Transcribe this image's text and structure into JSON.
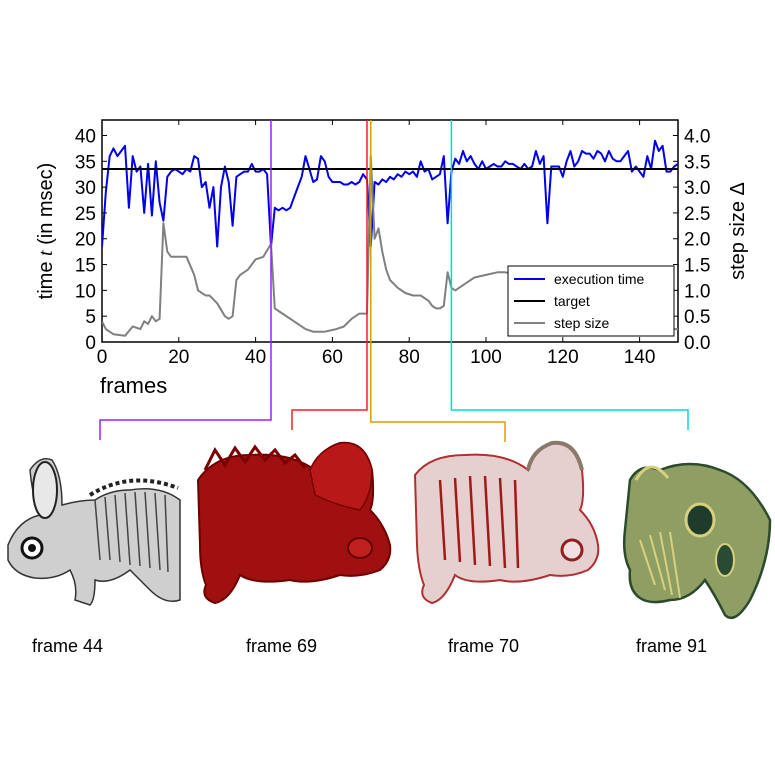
{
  "chart_data": {
    "type": "line",
    "xlabel": "frames",
    "ylabel_left": "time t (in msec)",
    "ylabel_right": "step size Δ",
    "xlim": [
      0,
      150
    ],
    "ylim_left": [
      0,
      43
    ],
    "ylim_right": [
      0,
      4.3
    ],
    "xticks": [
      0,
      20,
      40,
      60,
      80,
      100,
      120,
      140
    ],
    "yticks_left": [
      0,
      5,
      10,
      15,
      20,
      25,
      30,
      35,
      40
    ],
    "yticks_right": [
      "0.0",
      "0.5",
      "1.0",
      "1.5",
      "2.0",
      "2.5",
      "3.0",
      "3.5",
      "4.0"
    ],
    "legend_position": "lower-right",
    "series": [
      {
        "name": "execution time",
        "axis": "left",
        "color": "#0000ee",
        "points": [
          [
            0,
            18.5
          ],
          [
            1,
            29
          ],
          [
            2,
            36
          ],
          [
            3,
            37.5
          ],
          [
            4,
            36
          ],
          [
            5,
            37
          ],
          [
            6,
            38
          ],
          [
            7,
            26
          ],
          [
            8,
            36
          ],
          [
            9,
            33
          ],
          [
            10,
            34
          ],
          [
            11,
            25
          ],
          [
            12,
            34.5
          ],
          [
            13,
            24.5
          ],
          [
            14,
            35
          ],
          [
            15,
            27
          ],
          [
            16,
            23.5
          ],
          [
            17,
            32
          ],
          [
            18,
            33
          ],
          [
            19,
            33.5
          ],
          [
            20,
            33
          ],
          [
            21,
            32.5
          ],
          [
            22,
            33.5
          ],
          [
            23,
            33
          ],
          [
            24,
            36
          ],
          [
            25,
            35.5
          ],
          [
            26,
            30
          ],
          [
            27,
            31
          ],
          [
            28,
            26
          ],
          [
            29,
            30
          ],
          [
            30,
            18.5
          ],
          [
            31,
            30
          ],
          [
            32,
            34
          ],
          [
            33,
            31
          ],
          [
            34,
            22.5
          ],
          [
            35,
            32
          ],
          [
            36,
            32.5
          ],
          [
            37,
            33
          ],
          [
            38,
            33
          ],
          [
            39,
            34.5
          ],
          [
            40,
            33
          ],
          [
            41,
            33
          ],
          [
            42,
            33.5
          ],
          [
            43,
            32.5
          ],
          [
            44,
            18.5
          ],
          [
            45,
            26
          ],
          [
            46,
            25.5
          ],
          [
            47,
            26
          ],
          [
            48,
            25.5
          ],
          [
            49,
            26
          ],
          [
            50,
            28
          ],
          [
            51,
            30
          ],
          [
            52,
            32
          ],
          [
            53,
            36
          ],
          [
            54,
            33.5
          ],
          [
            55,
            31
          ],
          [
            56,
            31.5
          ],
          [
            57,
            36
          ],
          [
            58,
            35
          ],
          [
            59,
            32
          ],
          [
            60,
            31
          ],
          [
            61,
            31
          ],
          [
            62,
            31
          ],
          [
            63,
            30.5
          ],
          [
            64,
            30.5
          ],
          [
            65,
            31
          ],
          [
            66,
            30.5
          ],
          [
            67,
            31
          ],
          [
            68,
            32.5
          ],
          [
            69,
            31.5
          ],
          [
            70,
            18.5
          ],
          [
            71,
            31
          ],
          [
            72,
            30.5
          ],
          [
            73,
            31.5
          ],
          [
            74,
            31
          ],
          [
            75,
            32
          ],
          [
            76,
            31.5
          ],
          [
            77,
            32.5
          ],
          [
            78,
            32
          ],
          [
            79,
            33
          ],
          [
            80,
            32.5
          ],
          [
            81,
            33
          ],
          [
            82,
            32
          ],
          [
            83,
            35
          ],
          [
            84,
            33
          ],
          [
            85,
            33.5
          ],
          [
            86,
            31.5
          ],
          [
            87,
            32
          ],
          [
            88,
            32.5
          ],
          [
            89,
            36
          ],
          [
            90,
            23
          ],
          [
            91,
            33
          ],
          [
            92,
            35.5
          ],
          [
            93,
            34.5
          ],
          [
            94,
            37
          ],
          [
            95,
            35
          ],
          [
            96,
            36
          ],
          [
            97,
            34.5
          ],
          [
            98,
            33.5
          ],
          [
            99,
            35
          ],
          [
            100,
            33.5
          ],
          [
            101,
            34
          ],
          [
            102,
            34.5
          ],
          [
            103,
            34
          ],
          [
            104,
            34
          ],
          [
            105,
            35
          ],
          [
            106,
            34.5
          ],
          [
            107,
            34.5
          ],
          [
            108,
            34
          ],
          [
            109,
            33.5
          ],
          [
            110,
            34.5
          ],
          [
            111,
            33.5
          ],
          [
            112,
            34
          ],
          [
            113,
            37
          ],
          [
            114,
            34.5
          ],
          [
            115,
            36
          ],
          [
            116,
            23
          ],
          [
            117,
            34
          ],
          [
            118,
            34
          ],
          [
            119,
            34
          ],
          [
            120,
            32
          ],
          [
            121,
            35
          ],
          [
            122,
            37
          ],
          [
            123,
            34
          ],
          [
            124,
            35
          ],
          [
            125,
            37
          ],
          [
            126,
            36.5
          ],
          [
            127,
            36.5
          ],
          [
            128,
            35.5
          ],
          [
            129,
            37
          ],
          [
            130,
            36.5
          ],
          [
            131,
            35
          ],
          [
            132,
            37
          ],
          [
            133,
            35.5
          ],
          [
            134,
            35
          ],
          [
            135,
            35
          ],
          [
            136,
            36
          ],
          [
            137,
            37
          ],
          [
            138,
            33
          ],
          [
            139,
            34
          ],
          [
            140,
            33
          ],
          [
            141,
            32
          ],
          [
            142,
            36
          ],
          [
            143,
            33.5
          ],
          [
            144,
            39
          ],
          [
            145,
            37
          ],
          [
            146,
            38
          ],
          [
            147,
            33
          ],
          [
            148,
            33
          ],
          [
            149,
            34
          ],
          [
            150,
            34.5
          ]
        ]
      },
      {
        "name": "target",
        "axis": "left",
        "color": "#000000",
        "points": [
          [
            0,
            33.5
          ],
          [
            150,
            33.5
          ]
        ]
      },
      {
        "name": "step size",
        "axis": "right",
        "color": "#808080",
        "points": [
          [
            0,
            0.4
          ],
          [
            1,
            0.25
          ],
          [
            3,
            0.15
          ],
          [
            6,
            0.12
          ],
          [
            8,
            0.3
          ],
          [
            10,
            0.25
          ],
          [
            11,
            0.4
          ],
          [
            12,
            0.35
          ],
          [
            13,
            0.5
          ],
          [
            14,
            0.4
          ],
          [
            15,
            0.45
          ],
          [
            16,
            2.3
          ],
          [
            17,
            1.75
          ],
          [
            18,
            1.65
          ],
          [
            20,
            1.65
          ],
          [
            22,
            1.65
          ],
          [
            24,
            1.3
          ],
          [
            25,
            1.0
          ],
          [
            27,
            0.9
          ],
          [
            28,
            0.9
          ],
          [
            30,
            0.75
          ],
          [
            32,
            0.5
          ],
          [
            33,
            0.45
          ],
          [
            34,
            0.5
          ],
          [
            35,
            1.2
          ],
          [
            36,
            1.3
          ],
          [
            38,
            1.4
          ],
          [
            40,
            1.6
          ],
          [
            42,
            1.65
          ],
          [
            44,
            1.9
          ],
          [
            45,
            0.65
          ],
          [
            46,
            0.6
          ],
          [
            50,
            0.4
          ],
          [
            53,
            0.25
          ],
          [
            55,
            0.2
          ],
          [
            58,
            0.2
          ],
          [
            61,
            0.25
          ],
          [
            63,
            0.3
          ],
          [
            65,
            0.45
          ],
          [
            67,
            0.55
          ],
          [
            69,
            0.55
          ],
          [
            70,
            3.6
          ],
          [
            71,
            2.0
          ],
          [
            72,
            2.2
          ],
          [
            73,
            1.75
          ],
          [
            74,
            1.4
          ],
          [
            75,
            1.2
          ],
          [
            77,
            1.05
          ],
          [
            79,
            0.95
          ],
          [
            81,
            0.9
          ],
          [
            83,
            0.9
          ],
          [
            85,
            0.8
          ],
          [
            86,
            0.7
          ],
          [
            87,
            0.65
          ],
          [
            88,
            0.65
          ],
          [
            89,
            0.7
          ],
          [
            90,
            1.35
          ],
          [
            91,
            1.05
          ],
          [
            92,
            1.0
          ],
          [
            93,
            1.05
          ],
          [
            95,
            1.15
          ],
          [
            97,
            1.25
          ],
          [
            100,
            1.3
          ],
          [
            103,
            1.35
          ],
          [
            105,
            1.35
          ],
          [
            108,
            1.3
          ],
          [
            110,
            0.45
          ],
          [
            112,
            0.35
          ],
          [
            115,
            0.3
          ],
          [
            118,
            0.25
          ],
          [
            120,
            0.3
          ],
          [
            124,
            0.3
          ],
          [
            128,
            0.25
          ],
          [
            132,
            0.2
          ],
          [
            136,
            0.25
          ],
          [
            140,
            0.3
          ],
          [
            144,
            0.25
          ],
          [
            147,
            0.25
          ],
          [
            150,
            0.25
          ]
        ]
      }
    ],
    "frame_markers": [
      {
        "frame": 44,
        "color": "#a020f0"
      },
      {
        "frame": 69,
        "color": "#ee2222"
      },
      {
        "frame": 70,
        "color": "#d4a000"
      },
      {
        "frame": 91,
        "color": "#00d8e8"
      }
    ]
  },
  "frames": [
    {
      "caption": "frame 44"
    },
    {
      "caption": "frame 69"
    },
    {
      "caption": "frame 70"
    },
    {
      "caption": "frame 91"
    }
  ]
}
